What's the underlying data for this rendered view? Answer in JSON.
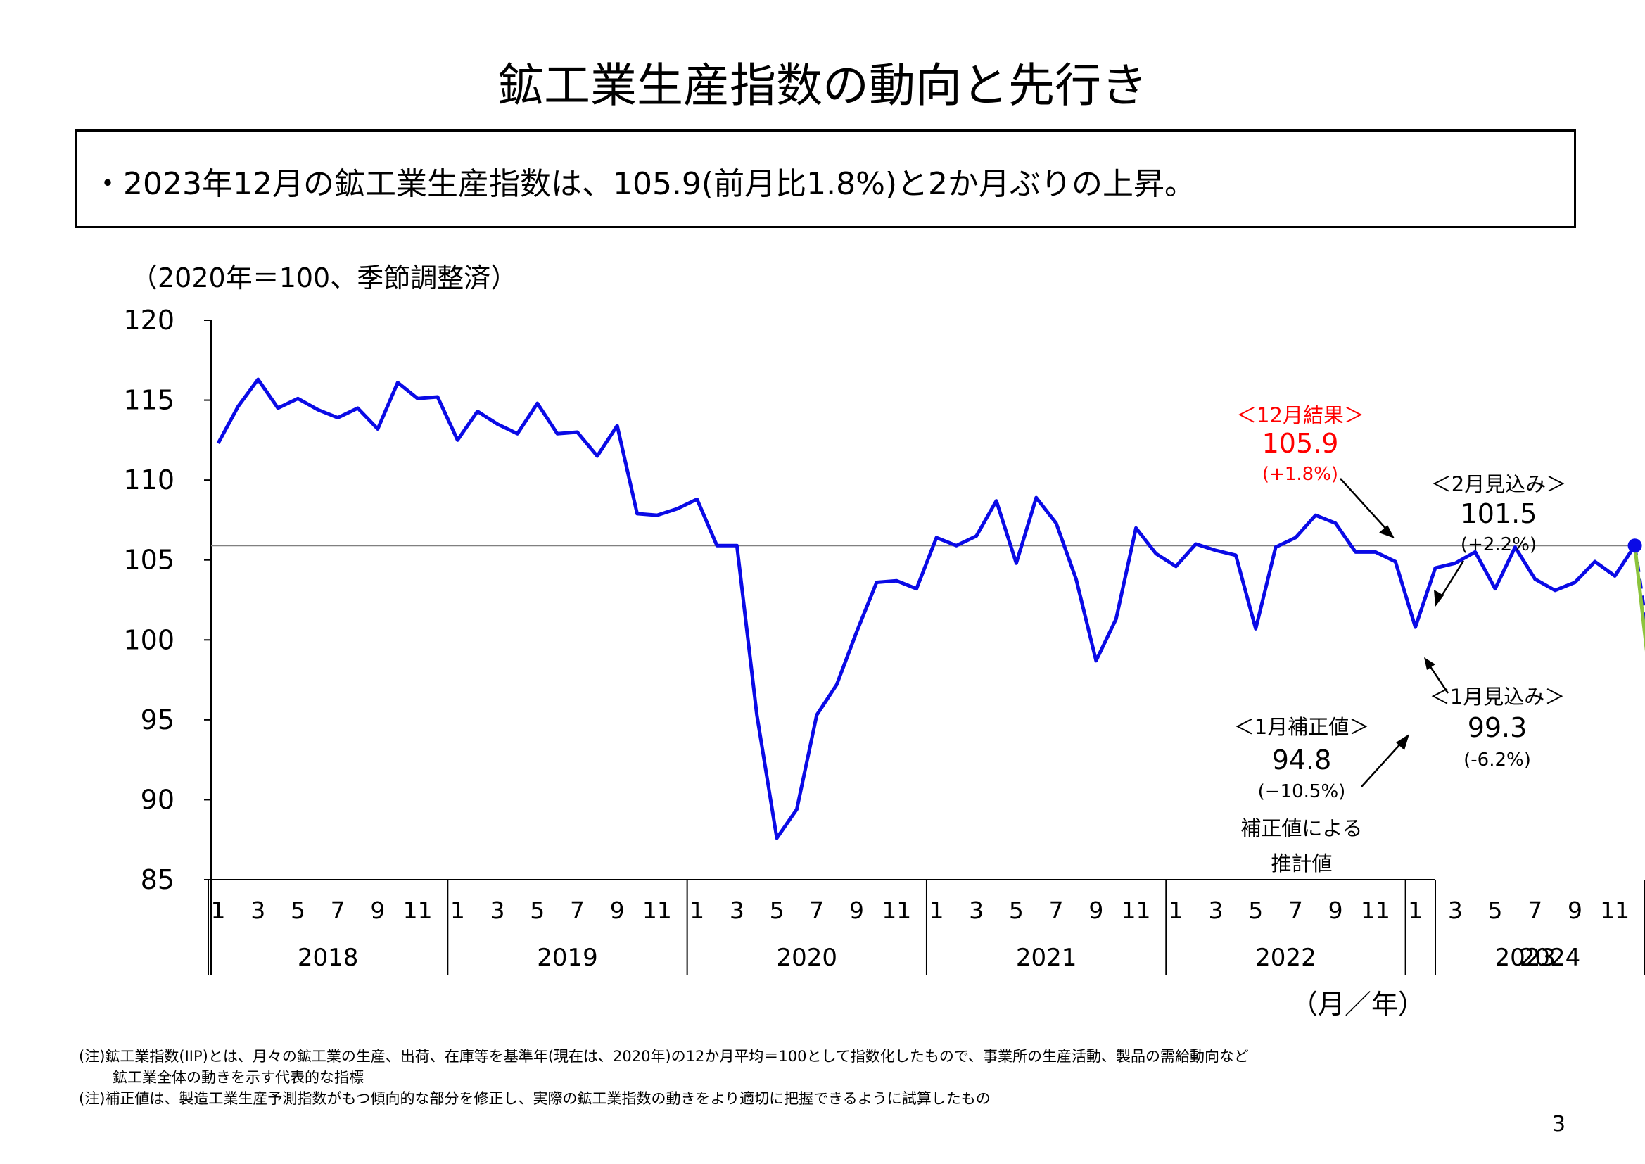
{
  "title": "鉱工業生産指数の動向と先行き",
  "summary": "・2023年12月の鉱工業生産指数は、105.9(前月比1.8%)と2か月ぶりの上昇。",
  "unit_note": "（2020年＝100、季節調整済）",
  "notes": [
    "(注)鉱工業指数(IIP)とは、月々の鉱工業の生産、出荷、在庫等を基準年(現在は、2020年)の12か月平均＝100として指数化したもので、事業所の生産活動、製品の需給動向など",
    "鉱工業全体の動きを示す代表的な指標",
    "(注)補正値は、製造工業生産予測指数がもつ傾向的な部分を修正し、実際の鉱工業指数の動きをより適切に把握できるように試算したもの"
  ],
  "page_number": "3",
  "colors": {
    "series": "#0a0ae6",
    "reference_line": "#808080",
    "adjusted": "#8cc43c",
    "forecast_point": "#ff0000",
    "result_label": "#ff0000"
  },
  "chart_data": {
    "type": "line",
    "title": "",
    "ylabel": "（2020年＝100、季節調整済）",
    "xlabel": "（月／年）",
    "ylim": [
      85,
      120
    ],
    "yticks": [
      85,
      90,
      95,
      100,
      105,
      110,
      115,
      120
    ],
    "grid": false,
    "legend": "none",
    "month_tick_labels": [
      "1",
      "3",
      "5",
      "7",
      "9",
      "11"
    ],
    "year_labels": [
      "2018",
      "2019",
      "2020",
      "2021",
      "2022",
      "2023",
      "2024"
    ],
    "x_start": "2018-01",
    "series": [
      {
        "values": [
          112.3,
          114.6,
          116.3,
          114.5,
          115.1,
          114.4,
          113.9,
          114.5,
          113.2,
          116.1,
          115.1,
          115.2,
          112.5,
          114.3,
          113.5,
          112.9,
          114.8,
          112.9,
          113.0,
          111.5,
          113.4,
          107.9,
          107.8,
          108.2,
          108.8,
          105.9,
          105.9,
          95.3,
          87.6,
          89.4,
          95.3,
          97.2,
          100.5,
          103.6,
          103.7,
          103.2,
          106.4,
          105.9,
          106.5,
          108.7,
          104.8,
          108.9,
          107.3,
          103.8,
          98.7,
          101.3,
          107.0,
          105.4,
          104.6,
          106.0,
          105.6,
          105.3,
          100.7,
          105.8,
          106.4,
          107.8,
          107.3,
          105.5,
          105.5,
          104.9,
          100.8,
          104.5,
          104.8,
          105.5,
          103.2,
          105.8,
          103.8,
          103.1,
          103.6,
          104.9,
          104.0,
          105.9
        ]
      }
    ],
    "forecast_path": {
      "months": [
        "2024-01",
        "2024-02"
      ],
      "values": [
        99.3,
        101.5
      ],
      "style": "dashed"
    },
    "adjusted_path": {
      "from": "2023-12",
      "to": "2024-01",
      "values": [
        105.9,
        94.8
      ]
    },
    "reference_line": 105.9,
    "annotations": {
      "result": {
        "label": "＜12月結果＞",
        "value": "105.9",
        "change": "(+1.8%)",
        "x": "2023-12",
        "y": 105.9
      },
      "forecast_feb": {
        "label": "＜2月見込み＞",
        "value": "101.5",
        "change": "(+2.2%)",
        "x": "2024-02",
        "y": 101.5
      },
      "forecast_jan": {
        "label": "＜1月見込み＞",
        "value": "99.3",
        "change": "(-6.2%)",
        "x": "2024-01",
        "y": 99.3
      },
      "adjusted_jan": {
        "label": "＜1月補正値＞",
        "value": "94.8",
        "change": "(−10.5%)",
        "note_line1": "補正値による",
        "note_line2": "推計値",
        "x": "2024-01",
        "y": 94.8
      }
    }
  }
}
